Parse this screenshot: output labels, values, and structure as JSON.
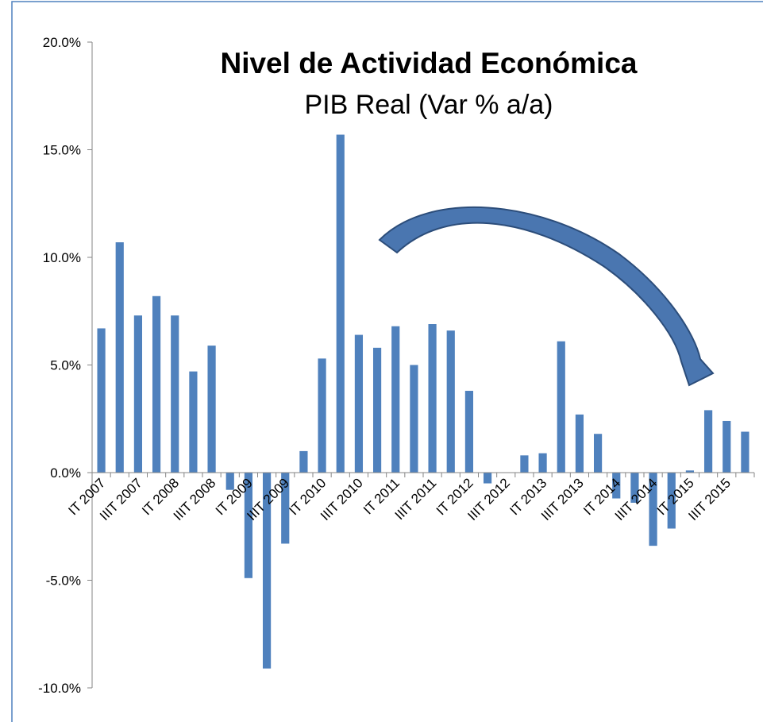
{
  "chart_data": {
    "type": "bar",
    "title": "Nivel de Actividad Económica",
    "subtitle": "PIB Real (Var % a/a)",
    "categories": [
      "IT 2007",
      null,
      "IIIT 2007",
      null,
      "IT 2008",
      null,
      "IIIT 2008",
      null,
      "IT 2009",
      null,
      "IIIT 2009",
      null,
      "IT 2010",
      null,
      "IIIT 2010",
      null,
      "IT 2011",
      null,
      "IIIT 2011",
      null,
      "IT 2012",
      null,
      "IIIT 2012",
      null,
      "IT 2013",
      null,
      "IIIT 2013",
      null,
      "IT 2014",
      null,
      "IIIT 2014",
      null,
      "IT 2015",
      null,
      "IIIT 2015",
      null
    ],
    "values": [
      6.7,
      10.7,
      7.3,
      8.2,
      7.3,
      4.7,
      5.9,
      -0.8,
      -4.9,
      -9.1,
      -3.3,
      1.0,
      5.3,
      15.7,
      6.4,
      5.8,
      6.8,
      5.0,
      6.9,
      6.6,
      3.8,
      -0.5,
      0.0,
      0.8,
      0.9,
      6.1,
      2.7,
      1.8,
      -1.2,
      -1.4,
      -3.4,
      -2.6,
      0.1,
      2.9,
      2.4,
      1.9
    ],
    "color": "#4f81bd",
    "ylim": [
      -10,
      20
    ],
    "yticks": [
      {
        "value": -10,
        "label": "-10.0%"
      },
      {
        "value": -5,
        "label": "-5.0%"
      },
      {
        "value": 0,
        "label": "0.0%"
      },
      {
        "value": 5,
        "label": "5.0%"
      },
      {
        "value": 10,
        "label": "10.0%"
      },
      {
        "value": 15,
        "label": "15.0%"
      },
      {
        "value": 20,
        "label": "20.0%"
      }
    ],
    "grid": false
  }
}
